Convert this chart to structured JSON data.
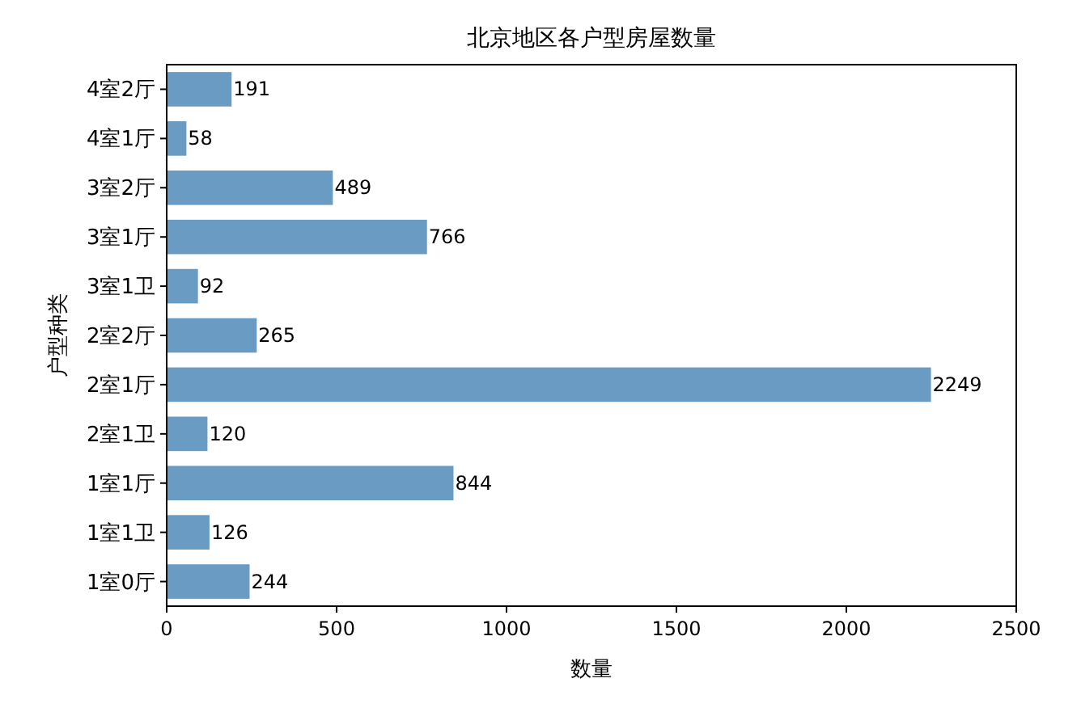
{
  "chart_data": {
    "type": "bar",
    "orientation": "horizontal",
    "title": "北京地区各户型房屋数量",
    "xlabel": "数量",
    "ylabel": "户型种类",
    "categories": [
      "4室2厅",
      "4室1厅",
      "3室2厅",
      "3室1厅",
      "3室1卫",
      "2室2厅",
      "2室1厅",
      "2室1卫",
      "1室1厅",
      "1室1卫",
      "1室0厅"
    ],
    "values": [
      191,
      58,
      489,
      766,
      92,
      265,
      2249,
      120,
      844,
      126,
      244
    ],
    "color": "#6a9bc3",
    "xlim": [
      0,
      2500
    ],
    "xticks": [
      0,
      500,
      1000,
      1500,
      2000,
      2500
    ],
    "data_labels": true
  }
}
